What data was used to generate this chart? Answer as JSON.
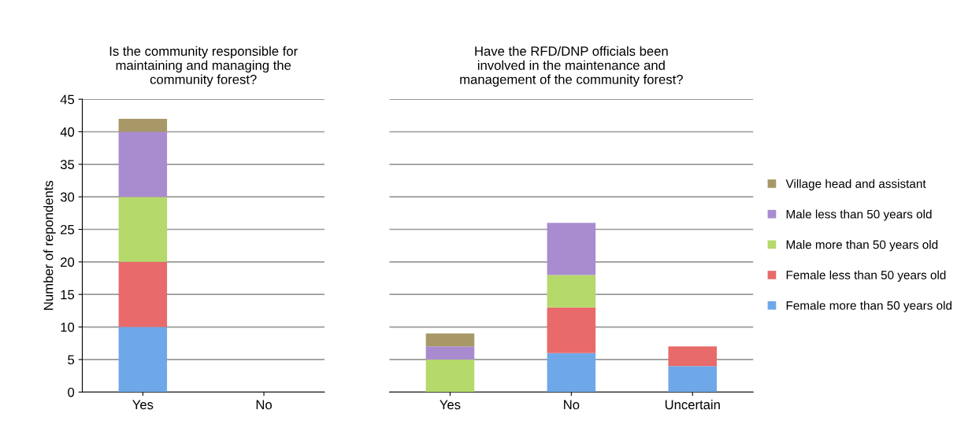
{
  "chart_data": [
    {
      "type": "bar",
      "title": "Is the community responsible for\nmaintaining and managing the\ncommunity forest?",
      "ylabel": "Number of repondents",
      "categories": [
        "Yes",
        "No"
      ],
      "stacked": true,
      "ylim": [
        0,
        45
      ],
      "yticks": [
        0,
        5,
        10,
        15,
        20,
        25,
        30,
        35,
        40,
        45
      ],
      "grid": "y",
      "series": [
        {
          "color": "#6fa8e8",
          "values": [
            10,
            0
          ]
        },
        {
          "color": "#e86a6a",
          "values": [
            10,
            0
          ]
        },
        {
          "color": "#b5d96a",
          "values": [
            10,
            0
          ]
        },
        {
          "color": "#a98cd0",
          "values": [
            10,
            0
          ]
        },
        {
          "color": "#a89868",
          "values": [
            2,
            0
          ]
        }
      ]
    },
    {
      "type": "bar",
      "title": "Have the RFD/DNP officials been\ninvolved in the maintenance and\nmanagement of the community forest?",
      "categories": [
        "Yes",
        "No",
        "Uncertain"
      ],
      "stacked": true,
      "ylim": [
        0,
        45
      ],
      "yticks": [
        0,
        5,
        10,
        15,
        20,
        25,
        30,
        35,
        40,
        45
      ],
      "grid": "y",
      "legend": "right",
      "tick_labels": "x",
      "series": [
        {
          "name": "Female more than 50 years old",
          "color": "#6fa8e8",
          "values": [
            0,
            6,
            4
          ]
        },
        {
          "name": "Female less than 50 years old",
          "color": "#e86a6a",
          "values": [
            0,
            7,
            3
          ]
        },
        {
          "name": "Male more than 50 years old",
          "color": "#b5d96a",
          "values": [
            5,
            5,
            0
          ]
        },
        {
          "name": "Male less than 50 years old",
          "color": "#a98cd0",
          "values": [
            2,
            8,
            0
          ]
        },
        {
          "name": "Village head and assistant",
          "color": "#a89868",
          "values": [
            2,
            0,
            0
          ]
        }
      ]
    }
  ]
}
